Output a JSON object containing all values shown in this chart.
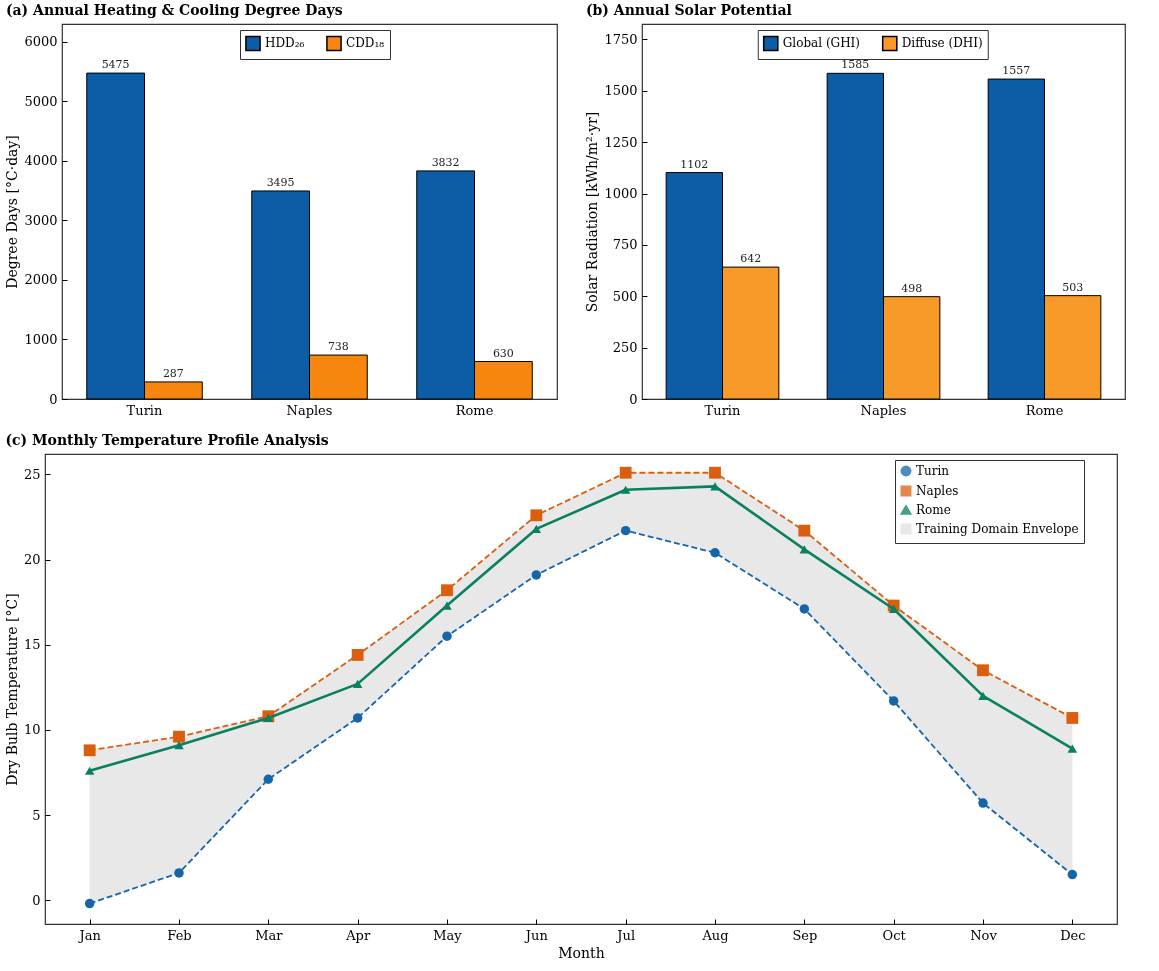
{
  "chart_data": [
    {
      "type": "bar",
      "title": "(a) Annual Heating & Cooling Degree Days",
      "categories": [
        "Turin",
        "Naples",
        "Rome"
      ],
      "ylabel": "Degree Days [°C·day]",
      "ylim": [
        0,
        6300
      ],
      "yticks": [
        0,
        1000,
        2000,
        3000,
        4000,
        5000,
        6000
      ],
      "legend": "top",
      "data_labels": true,
      "grid": false,
      "series": [
        {
          "name": "HDD₂₆",
          "color": "#0d5ca6",
          "values": [
            5475,
            3495,
            3832
          ]
        },
        {
          "name": "CDD₁₈",
          "color": "#f7860f",
          "values": [
            287,
            738,
            630
          ]
        }
      ]
    },
    {
      "type": "bar",
      "title": "(b) Annual Solar Potential",
      "categories": [
        "Turin",
        "Naples",
        "Rome"
      ],
      "ylabel": "Solar Radiation [kWh/m²·yr]",
      "ylim": [
        0,
        1825
      ],
      "yticks": [
        0,
        250,
        500,
        750,
        1000,
        1250,
        1500,
        1750
      ],
      "legend": "top",
      "data_labels": true,
      "grid": false,
      "series": [
        {
          "name": "Global (GHI)",
          "color": "#0d5ca6",
          "values": [
            1102,
            1585,
            1557
          ]
        },
        {
          "name": "Diffuse (DHI)",
          "color": "#f79a2a",
          "values": [
            642,
            498,
            503
          ]
        }
      ]
    },
    {
      "type": "line",
      "title": "(c) Monthly Temperature Profile Analysis",
      "categories": [
        "Jan",
        "Feb",
        "Mar",
        "Apr",
        "May",
        "Jun",
        "Jul",
        "Aug",
        "Sep",
        "Oct",
        "Nov",
        "Dec"
      ],
      "xlabel": "Month",
      "ylabel": "Dry Bulb Temperature [°C]",
      "ylim": [
        -1.4,
        26.2
      ],
      "yticks": [
        0,
        5,
        10,
        15,
        20,
        25
      ],
      "legend": "top right",
      "grid": false,
      "series": [
        {
          "name": "Turin",
          "color": "#1565a8",
          "line_style": "dashed",
          "marker": "circle",
          "values": [
            -0.2,
            1.6,
            7.1,
            10.7,
            15.5,
            19.1,
            21.7,
            20.4,
            17.1,
            11.7,
            5.7,
            1.5
          ]
        },
        {
          "name": "Naples",
          "color": "#d95f0e",
          "line_style": "dashed",
          "marker": "square",
          "values": [
            8.8,
            9.6,
            10.8,
            14.4,
            18.2,
            22.6,
            25.1,
            25.1,
            21.7,
            17.3,
            13.5,
            10.7
          ]
        },
        {
          "name": "Rome",
          "color": "#0a8060",
          "line_style": "solid",
          "marker": "triangle",
          "values": [
            7.6,
            9.1,
            10.7,
            12.7,
            17.3,
            21.8,
            24.1,
            24.3,
            20.6,
            17.1,
            12.0,
            8.9
          ]
        },
        {
          "name": "Training Domain Envelope",
          "type": "area",
          "color": "#e0e0e0",
          "values": [
            null,
            null,
            null,
            null,
            null,
            null,
            null,
            null,
            null,
            null,
            null,
            null
          ],
          "lower": [
            -0.2,
            1.6,
            7.1,
            10.7,
            15.5,
            19.1,
            21.7,
            20.4,
            17.1,
            11.7,
            5.7,
            1.5
          ],
          "upper": [
            8.8,
            9.6,
            10.8,
            14.4,
            18.2,
            22.6,
            25.1,
            25.1,
            21.7,
            17.3,
            13.5,
            10.7
          ]
        }
      ]
    }
  ]
}
